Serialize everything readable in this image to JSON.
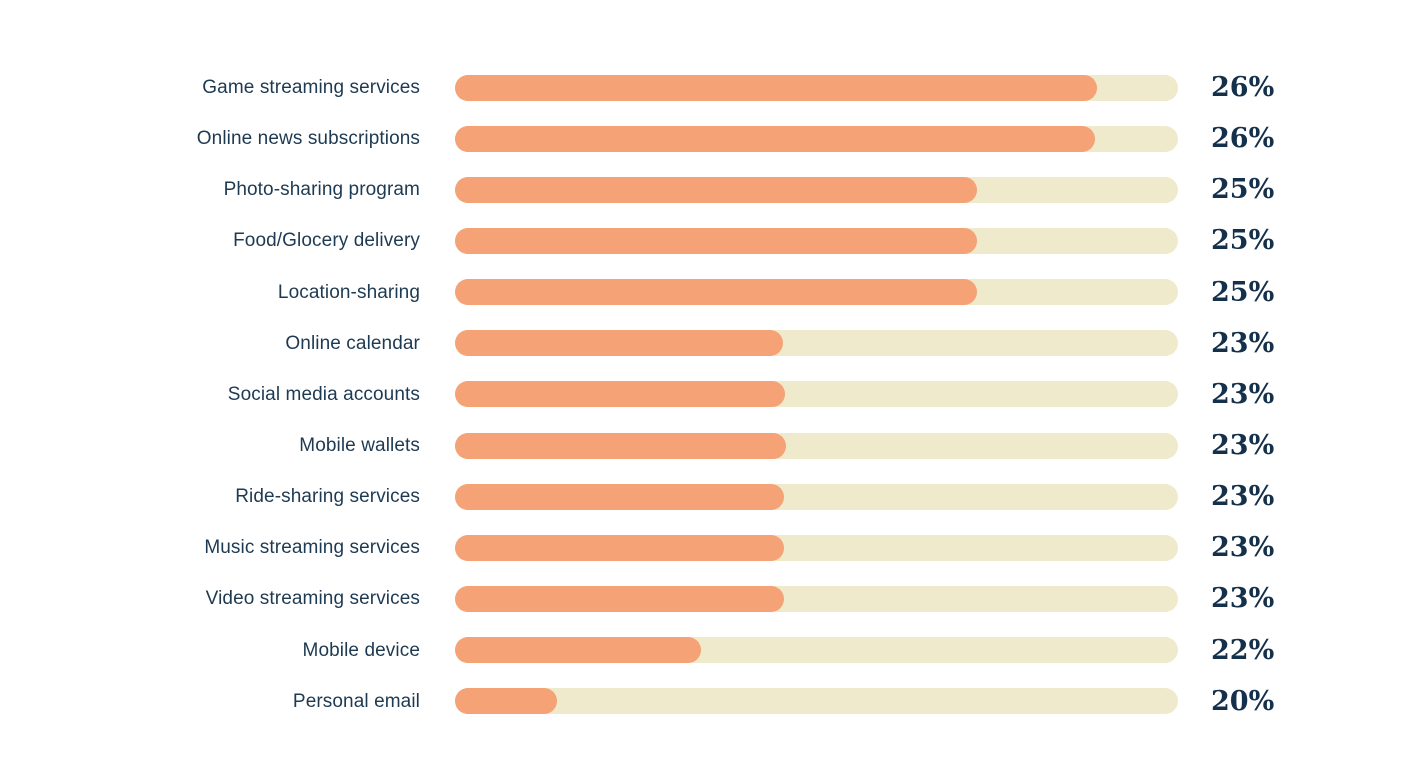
{
  "chart_data": {
    "type": "bar",
    "orientation": "horizontal",
    "title": "",
    "xlabel": "",
    "ylabel": "",
    "grid": false,
    "legend": false,
    "value_suffix": "%",
    "categories": [
      "Game streaming services",
      "Online news subscriptions",
      "Photo-sharing program",
      "Food/Glocery delivery",
      "Location-sharing",
      "Online calendar",
      "Social media accounts",
      "Mobile wallets",
      "Ride-sharing services",
      "Music streaming services",
      "Video streaming services",
      "Mobile device",
      "Personal email"
    ],
    "values": [
      26,
      26,
      25,
      25,
      25,
      23,
      23,
      23,
      23,
      23,
      23,
      22,
      20
    ],
    "value_labels": [
      "26%",
      "26%",
      "25%",
      "25%",
      "25%",
      "23%",
      "23%",
      "23%",
      "23%",
      "23%",
      "23%",
      "22%",
      "20%"
    ],
    "bar_fill_fractions": [
      0.888,
      0.885,
      0.722,
      0.722,
      0.722,
      0.454,
      0.456,
      0.458,
      0.455,
      0.455,
      0.455,
      0.34,
      0.141
    ],
    "colors": {
      "bar_fill": "#f4a276",
      "bar_track": "#efeacb",
      "label_text": "#1e3a52",
      "value_text": "#14304a",
      "background": "#ffffff"
    }
  }
}
